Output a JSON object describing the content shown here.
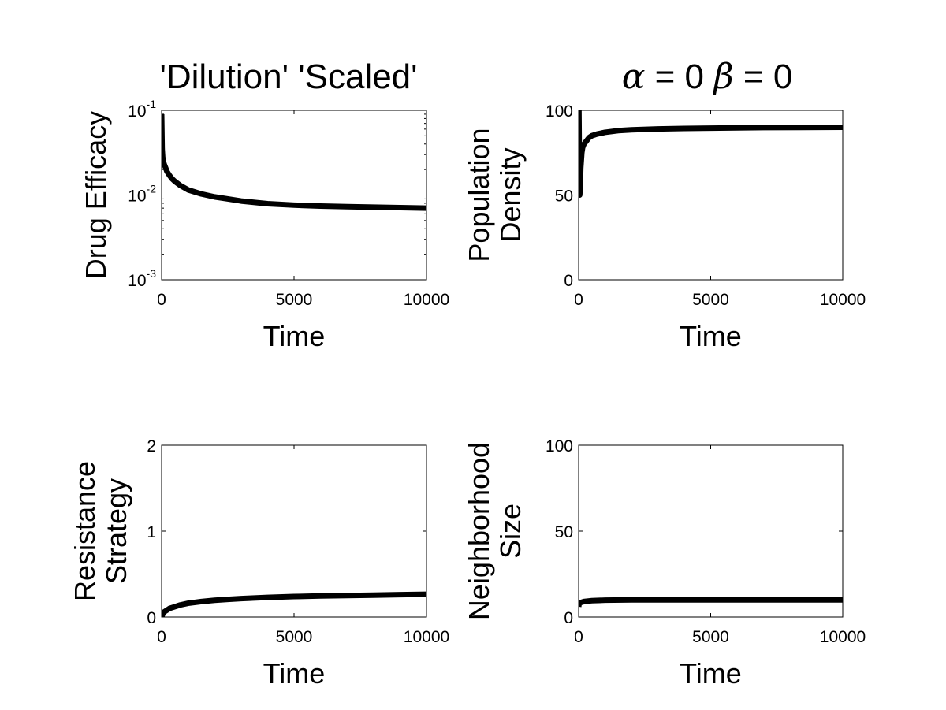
{
  "titles": {
    "left": "'Dilution' 'Scaled'",
    "right_alpha_symbol": "α",
    "right_alpha_rest": " = 0 ",
    "right_beta_symbol": "β",
    "right_beta_rest": " = 0"
  },
  "chart_data": [
    {
      "type": "line",
      "xlabel": "Time",
      "ylabel": "Drug Efficacy",
      "xlim": [
        0,
        10000
      ],
      "ylim": [
        0.001,
        0.1
      ],
      "yscale": "log",
      "xticks": [
        0,
        5000,
        10000
      ],
      "xtick_labels": [
        "0",
        "5000",
        "10000"
      ],
      "yticks": [
        0.001,
        0.01,
        0.1
      ],
      "ytick_labels": [
        {
          "base": "10",
          "exp": "-3"
        },
        {
          "base": "10",
          "exp": "-2"
        },
        {
          "base": "10",
          "exp": "-1"
        }
      ],
      "grid": false,
      "series": [
        {
          "color": "#000000",
          "x": [
            0,
            20,
            40,
            60,
            80,
            100,
            150,
            200,
            300,
            400,
            500,
            700,
            1000,
            1500,
            2000,
            2500,
            3000,
            4000,
            5000,
            6000,
            7000,
            8000,
            9000,
            10000
          ],
          "y": [
            0.09,
            0.035,
            0.028,
            0.025,
            0.024,
            0.023,
            0.021,
            0.019,
            0.017,
            0.0155,
            0.0145,
            0.013,
            0.0115,
            0.0103,
            0.0095,
            0.009,
            0.0085,
            0.0079,
            0.0076,
            0.0074,
            0.0073,
            0.0072,
            0.0071,
            0.007
          ]
        }
      ]
    },
    {
      "type": "line",
      "xlabel": "Time",
      "ylabel": [
        "Population",
        "Density"
      ],
      "xlim": [
        0,
        10000
      ],
      "ylim": [
        0,
        100
      ],
      "xticks": [
        0,
        5000,
        10000
      ],
      "xtick_labels": [
        "0",
        "5000",
        "10000"
      ],
      "yticks": [
        0,
        50,
        100
      ],
      "ytick_labels": [
        "0",
        "50",
        "100"
      ],
      "grid": false,
      "series": [
        {
          "color": "#000000",
          "x": [
            0,
            10,
            20,
            30,
            40,
            60,
            80,
            120,
            150,
            200,
            300,
            400,
            500,
            700,
            1000,
            1500,
            2000,
            3000,
            4000,
            5000,
            7000,
            10000
          ],
          "y": [
            100,
            100,
            80,
            60,
            50,
            55,
            66,
            75,
            78,
            80,
            82,
            84,
            85,
            86,
            87,
            88,
            88.5,
            89,
            89.3,
            89.5,
            89.8,
            90
          ]
        }
      ]
    },
    {
      "type": "line",
      "xlabel": "Time",
      "ylabel": [
        "Resistance",
        "Strategy"
      ],
      "xlim": [
        0,
        10000
      ],
      "ylim": [
        0,
        2
      ],
      "xticks": [
        0,
        5000,
        10000
      ],
      "xtick_labels": [
        "0",
        "5000",
        "10000"
      ],
      "yticks": [
        0,
        1,
        2
      ],
      "ytick_labels": [
        "0",
        "1",
        "2"
      ],
      "grid": false,
      "series": [
        {
          "color": "#000000",
          "x": [
            0,
            50,
            100,
            200,
            300,
            500,
            700,
            1000,
            1500,
            2000,
            2500,
            3000,
            4000,
            5000,
            6000,
            7000,
            8000,
            9000,
            10000
          ],
          "y": [
            0,
            0.04,
            0.06,
            0.08,
            0.1,
            0.12,
            0.14,
            0.16,
            0.18,
            0.195,
            0.205,
            0.215,
            0.228,
            0.238,
            0.245,
            0.25,
            0.255,
            0.26,
            0.265
          ]
        }
      ]
    },
    {
      "type": "line",
      "xlabel": "Time",
      "ylabel": [
        "Neighborhood",
        "Size"
      ],
      "xlim": [
        0,
        10000
      ],
      "ylim": [
        0,
        100
      ],
      "xticks": [
        0,
        5000,
        10000
      ],
      "xtick_labels": [
        "0",
        "5000",
        "10000"
      ],
      "yticks": [
        0,
        50,
        100
      ],
      "ytick_labels": [
        "0",
        "50",
        "100"
      ],
      "grid": false,
      "series": [
        {
          "color": "#000000",
          "x": [
            0,
            20,
            50,
            100,
            200,
            300,
            500,
            1000,
            2000,
            3000,
            5000,
            7000,
            10000
          ],
          "y": [
            6,
            8,
            8.5,
            8.5,
            9,
            9.2,
            9.5,
            9.8,
            10,
            10,
            10,
            10,
            10
          ]
        }
      ]
    }
  ]
}
